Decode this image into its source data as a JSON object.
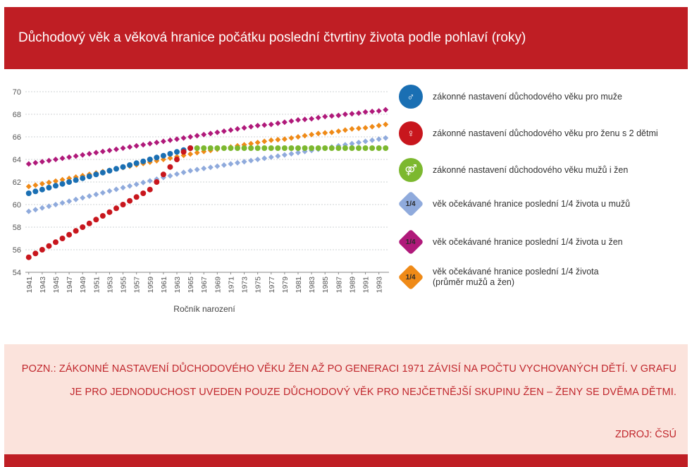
{
  "header": {
    "title": "Důchodový věk a věková hranice počátku poslední čtvrtiny života podle pohlaví (roky)"
  },
  "chart_data": {
    "type": "scatter",
    "xlabel": "Ročník narození",
    "ylabel": "",
    "xlim": [
      1941,
      1994
    ],
    "ylim": [
      54,
      70
    ],
    "yticks": [
      54,
      56,
      58,
      60,
      62,
      64,
      66,
      68,
      70
    ],
    "xticks": [
      "1941",
      "1943",
      "1945",
      "1947",
      "1949",
      "1951",
      "1953",
      "1955",
      "1957",
      "1959",
      "1961",
      "1963",
      "1965",
      "1967",
      "1969",
      "1971",
      "1973",
      "1975",
      "1977",
      "1979",
      "1981",
      "1983",
      "1985",
      "1987",
      "1989",
      "1991",
      "1993"
    ],
    "grid": true,
    "legend_position": "right",
    "series": [
      {
        "name": "zákonné nastavení důchodového věku  pro muže",
        "color": "#1a6fb3",
        "marker": "circle",
        "x": [
          1941,
          1942,
          1943,
          1944,
          1945,
          1946,
          1947,
          1948,
          1949,
          1950,
          1951,
          1952,
          1953,
          1954,
          1955,
          1956,
          1957,
          1958,
          1959,
          1960,
          1961,
          1962,
          1963,
          1964,
          1965
        ],
        "y": [
          61.0,
          61.17,
          61.33,
          61.5,
          61.67,
          61.83,
          62.0,
          62.17,
          62.33,
          62.5,
          62.67,
          62.83,
          63.0,
          63.17,
          63.33,
          63.5,
          63.67,
          63.83,
          64.0,
          64.17,
          64.33,
          64.5,
          64.67,
          64.83,
          65.0
        ]
      },
      {
        "name": "zákonné nastavení důchodového věku  pro ženu s 2 dětmi",
        "color": "#c8161d",
        "marker": "circle",
        "x": [
          1941,
          1942,
          1943,
          1944,
          1945,
          1946,
          1947,
          1948,
          1949,
          1950,
          1951,
          1952,
          1953,
          1954,
          1955,
          1956,
          1957,
          1958,
          1959,
          1960,
          1961,
          1962,
          1963,
          1964,
          1965
        ],
        "y": [
          55.33,
          55.67,
          56.0,
          56.33,
          56.67,
          57.0,
          57.33,
          57.67,
          58.0,
          58.33,
          58.67,
          59.0,
          59.33,
          59.67,
          60.0,
          60.33,
          60.67,
          61.0,
          61.33,
          62.0,
          62.67,
          63.33,
          64.0,
          64.67,
          65.0
        ]
      },
      {
        "name": "zákonné nastavení  důchodového věku  mužů i žen",
        "color": "#7cb82f",
        "marker": "circle",
        "x": [
          1966,
          1967,
          1968,
          1969,
          1970,
          1971,
          1972,
          1973,
          1974,
          1975,
          1976,
          1977,
          1978,
          1979,
          1980,
          1981,
          1982,
          1983,
          1984,
          1985,
          1986,
          1987,
          1988,
          1989,
          1990,
          1991,
          1992,
          1993,
          1994
        ],
        "y": [
          65,
          65,
          65,
          65,
          65,
          65,
          65,
          65,
          65,
          65,
          65,
          65,
          65,
          65,
          65,
          65,
          65,
          65,
          65,
          65,
          65,
          65,
          65,
          65,
          65,
          65,
          65,
          65,
          65
        ]
      },
      {
        "name": "věk očekávané hranice  poslední 1/4 života u mužů",
        "color": "#8faadc",
        "marker": "diamond",
        "x": [
          1941,
          1942,
          1943,
          1944,
          1945,
          1946,
          1947,
          1948,
          1949,
          1950,
          1951,
          1952,
          1953,
          1954,
          1955,
          1956,
          1957,
          1958,
          1959,
          1960,
          1961,
          1962,
          1963,
          1964,
          1965,
          1966,
          1967,
          1968,
          1969,
          1970,
          1971,
          1972,
          1973,
          1974,
          1975,
          1976,
          1977,
          1978,
          1979,
          1980,
          1981,
          1982,
          1983,
          1984,
          1985,
          1986,
          1987,
          1988,
          1989,
          1990,
          1991,
          1992,
          1993,
          1994
        ],
        "y": [
          59.4,
          59.55,
          59.7,
          59.85,
          60.0,
          60.15,
          60.3,
          60.45,
          60.6,
          60.75,
          60.9,
          61.05,
          61.2,
          61.35,
          61.5,
          61.65,
          61.8,
          61.95,
          62.1,
          62.25,
          62.4,
          62.55,
          62.7,
          62.85,
          63.0,
          63.1,
          63.2,
          63.3,
          63.4,
          63.5,
          63.6,
          63.7,
          63.8,
          63.9,
          64.0,
          64.1,
          64.2,
          64.3,
          64.4,
          64.5,
          64.6,
          64.7,
          64.8,
          64.9,
          65.0,
          65.1,
          65.2,
          65.3,
          65.4,
          65.5,
          65.6,
          65.7,
          65.8,
          65.9
        ]
      },
      {
        "name": "věk očekávané hranice  poslední 1/4 života u žen",
        "color": "#b0197a",
        "marker": "diamond",
        "x": [
          1941,
          1942,
          1943,
          1944,
          1945,
          1946,
          1947,
          1948,
          1949,
          1950,
          1951,
          1952,
          1953,
          1954,
          1955,
          1956,
          1957,
          1958,
          1959,
          1960,
          1961,
          1962,
          1963,
          1964,
          1965,
          1966,
          1967,
          1968,
          1969,
          1970,
          1971,
          1972,
          1973,
          1974,
          1975,
          1976,
          1977,
          1978,
          1979,
          1980,
          1981,
          1982,
          1983,
          1984,
          1985,
          1986,
          1987,
          1988,
          1989,
          1990,
          1991,
          1992,
          1993,
          1994
        ],
        "y": [
          63.6,
          63.7,
          63.8,
          63.9,
          64.0,
          64.1,
          64.2,
          64.3,
          64.4,
          64.5,
          64.6,
          64.7,
          64.8,
          64.9,
          65.0,
          65.1,
          65.2,
          65.3,
          65.4,
          65.5,
          65.6,
          65.7,
          65.8,
          65.9,
          66.0,
          66.1,
          66.2,
          66.3,
          66.4,
          66.5,
          66.6,
          66.7,
          66.8,
          66.9,
          67.0,
          67.05,
          67.1,
          67.2,
          67.3,
          67.4,
          67.5,
          67.55,
          67.6,
          67.7,
          67.8,
          67.85,
          67.9,
          68.0,
          68.05,
          68.1,
          68.2,
          68.25,
          68.3,
          68.4
        ]
      },
      {
        "name": "věk očekávané hranice  poslední 1/4 života (průměr mužů a žen)",
        "color": "#ef8a17",
        "marker": "diamond",
        "x": [
          1941,
          1942,
          1943,
          1944,
          1945,
          1946,
          1947,
          1948,
          1949,
          1950,
          1951,
          1952,
          1953,
          1954,
          1955,
          1956,
          1957,
          1958,
          1959,
          1960,
          1961,
          1962,
          1963,
          1964,
          1965,
          1966,
          1967,
          1968,
          1969,
          1970,
          1971,
          1972,
          1973,
          1974,
          1975,
          1976,
          1977,
          1978,
          1979,
          1980,
          1981,
          1982,
          1983,
          1984,
          1985,
          1986,
          1987,
          1988,
          1989,
          1990,
          1991,
          1992,
          1993,
          1994
        ],
        "y": [
          61.6,
          61.72,
          61.84,
          61.96,
          62.08,
          62.2,
          62.32,
          62.44,
          62.56,
          62.68,
          62.8,
          62.92,
          63.04,
          63.16,
          63.28,
          63.4,
          63.52,
          63.64,
          63.76,
          63.88,
          64.0,
          64.12,
          64.24,
          64.36,
          64.48,
          64.6,
          64.7,
          64.8,
          64.9,
          65.0,
          65.1,
          65.2,
          65.3,
          65.4,
          65.5,
          65.6,
          65.7,
          65.75,
          65.8,
          65.9,
          66.0,
          66.1,
          66.2,
          66.3,
          66.35,
          66.4,
          66.5,
          66.6,
          66.7,
          66.75,
          66.8,
          66.9,
          67.0,
          67.1
        ]
      }
    ]
  },
  "legend": {
    "items": [
      {
        "label": "zákonné nastavení důchodového věku  pro muže",
        "icon": "man-icon",
        "shape": "circle",
        "color": "#1a6fb3",
        "glyph": "♂"
      },
      {
        "label": "zákonné nastavení důchodového věku  pro ženu s 2 dětmi",
        "icon": "woman-with-children-icon",
        "shape": "circle",
        "color": "#c8161d",
        "glyph": "♀"
      },
      {
        "label": "zákonné nastavení  důchodového věku  mužů i žen",
        "icon": "man-and-woman-icon",
        "shape": "circle",
        "color": "#7cb82f",
        "glyph": "⚤"
      },
      {
        "label": "věk očekávané hranice  poslední 1/4 života u mužů",
        "icon": "quarter-diamond-icon",
        "shape": "diamond",
        "color": "#8faadc",
        "glyph": "1/4"
      },
      {
        "label": "věk očekávané hranice  poslední 1/4 života u žen",
        "icon": "quarter-diamond-icon",
        "shape": "diamond",
        "color": "#b0197a",
        "glyph": "1/4"
      },
      {
        "label": "věk očekávané hranice  poslední 1/4 života\n(průměr mužů a žen)",
        "icon": "quarter-diamond-icon",
        "shape": "diamond",
        "color": "#ef8a17",
        "glyph": "1/4"
      }
    ]
  },
  "note": {
    "text": "POZN.: ZÁKONNÉ NASTAVENÍ DŮCHODOVÉHO VĚKU ŽEN AŽ PO GENERACI 1971 ZÁVISÍ NA POČTU VYCHOVANÝCH DĚTÍ. V GRAFU JE PRO JEDNODUCHOST UVEDEN POUZE DŮCHODOVÝ VĚK PRO NEJČETNĚJŠÍ SKUPINU ŽEN – ŽENY SE DVĚMA DĚTMI.",
    "source": "ZDROJ: ČSÚ"
  }
}
